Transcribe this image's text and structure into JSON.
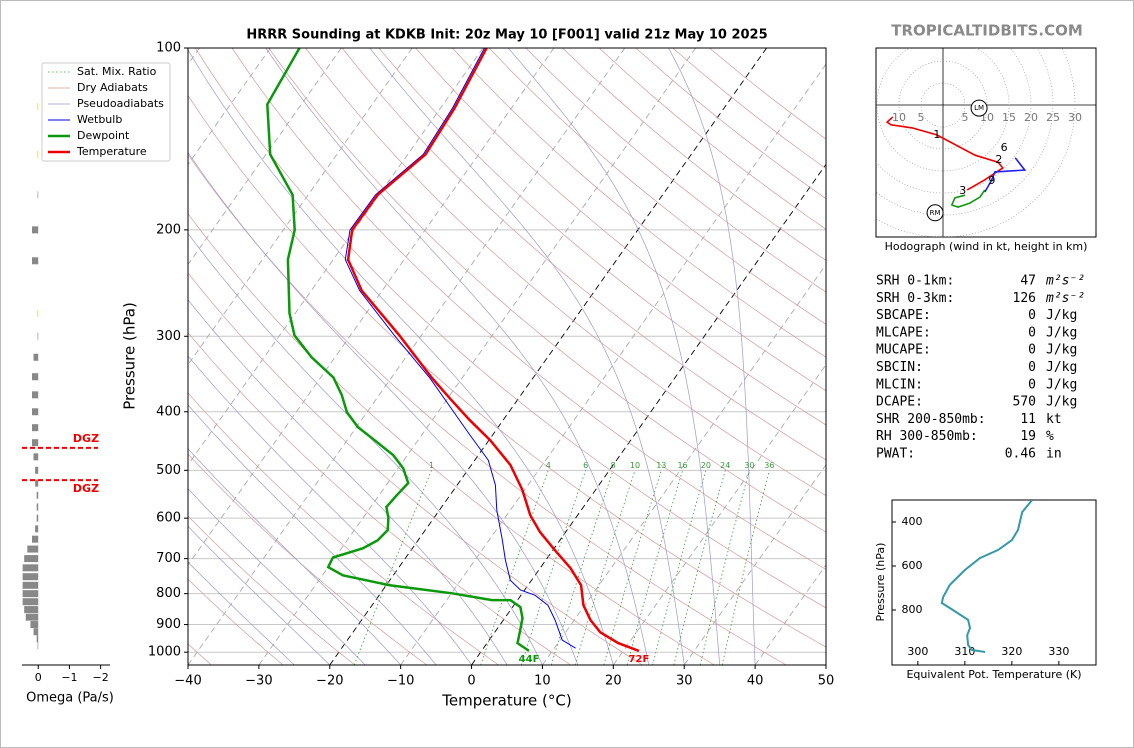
{
  "header": {
    "site": "TROPICALTIDBITS.COM"
  },
  "chart_data": [
    {
      "type": "skewt",
      "title": "HRRR Sounding at KDKB Init: 20z May 10 [F001] valid 21z May 10 2025",
      "xlabel": "Temperature (°C)",
      "ylabel": "Pressure (hPa)",
      "xlim": [
        -40,
        50
      ],
      "ylim": [
        1050,
        100
      ],
      "log_y": true,
      "grid": true,
      "xticks": [
        {
          "value": -40,
          "label": "−40"
        },
        {
          "value": -30,
          "label": "−30"
        },
        {
          "value": -20,
          "label": "−20"
        },
        {
          "value": -10,
          "label": "−10"
        },
        0,
        10,
        20,
        30,
        40,
        50
      ],
      "yticks": [
        100,
        200,
        300,
        400,
        500,
        600,
        700,
        800,
        900,
        1000
      ],
      "background_lines": [
        {
          "name": "Sat. Mix. Ratio",
          "color": "#3a9a3a",
          "style": "dotted"
        },
        {
          "name": "Dry Adiabats",
          "color": "#d69a9a",
          "style": "solid"
        },
        {
          "name": "Pseudoadiabats",
          "color": "#9b9bcf",
          "style": "solid"
        }
      ],
      "mixing_ratio_labels": [
        1,
        4,
        6,
        8,
        10,
        13,
        16,
        20,
        24,
        30,
        36
      ],
      "series": [
        {
          "name": "Wetbulb",
          "color": "#0000ee",
          "pressure": [
            985,
            955,
            885,
            836,
            805,
            789,
            760,
            704,
            653,
            582,
            529,
            481,
            437,
            352,
            299,
            252,
            224,
            200,
            175,
            150,
            126,
            100
          ],
          "values": [
            13,
            10.3,
            7.3,
            4.8,
            2,
            -0.6,
            -3,
            -5.7,
            -8.1,
            -11.9,
            -14.6,
            -18.1,
            -23.2,
            -34.5,
            -43.8,
            -53.2,
            -58.3,
            -60.6,
            -60.5,
            -57.8,
            -58.3,
            -59.8
          ]
        },
        {
          "name": "Dewpoint",
          "color": "#0a990a",
          "surface_label": "44F",
          "pressure": [
            995,
            966,
            920,
            878,
            842,
            820,
            820,
            799,
            775,
            746,
            723,
            697,
            673,
            653,
            628,
            600,
            575,
            550,
            525,
            496,
            472,
            446,
            424,
            401,
            375,
            351,
            325,
            299,
            275,
            224,
            200,
            175,
            150,
            124,
            100
          ],
          "values": [
            6.7,
            4.3,
            3.4,
            2.5,
            1.1,
            -1,
            -3.6,
            -9.9,
            -19.5,
            -27.1,
            -30,
            -30.3,
            -27,
            -25.7,
            -25.3,
            -26.4,
            -27.8,
            -27.5,
            -27.1,
            -29.3,
            -32,
            -36.1,
            -39.8,
            -42.8,
            -45.3,
            -48.2,
            -53.3,
            -57.9,
            -60.8,
            -66.4,
            -68.4,
            -72.2,
            -79.4,
            -84.8,
            -85.9
          ]
        },
        {
          "name": "Temperature",
          "color": "#ee0000",
          "surface_label": "72F",
          "pressure": [
            995,
            966,
            927,
            885,
            836,
            775,
            726,
            678,
            633,
            593,
            539,
            490,
            446,
            413,
            380,
            352,
            299,
            252,
            224,
            200,
            175,
            150,
            126,
            100
          ],
          "values": [
            22.2,
            18.5,
            14.9,
            12.3,
            9.8,
            7.5,
            4.3,
            0.3,
            -3.6,
            -6.7,
            -10.3,
            -14.5,
            -19.8,
            -24.7,
            -29.7,
            -34.2,
            -43.1,
            -52.9,
            -57.9,
            -60.3,
            -60.2,
            -57.5,
            -58,
            -59.5
          ]
        }
      ]
    },
    {
      "type": "hodograph",
      "caption": "Hodograph (wind in kt, height in km)",
      "ring_labels": [
        {
          "value": -10,
          "label": "10"
        },
        {
          "value": -5,
          "label": "5"
        },
        5,
        10,
        15,
        20,
        25,
        30
      ],
      "series": [
        {
          "color": "#ee0000",
          "u": [
            -11.4,
            -12.7,
            -11.8,
            -7,
            -1.4,
            7.3,
            12.5,
            13.6,
            9.5,
            5.5
          ],
          "v": [
            -2.7,
            -3.9,
            -4.5,
            -5.2,
            -6.8,
            -11.4,
            -13,
            -14.3,
            -17,
            -19.3
          ]
        },
        {
          "color": "#2222ee",
          "u": [
            9.5,
            11.1,
            11.8,
            18.6,
            16.4
          ],
          "v": [
            -19.8,
            -17,
            -15.2,
            -14.8,
            -12
          ]
        },
        {
          "color": "#119911",
          "u": [
            9.5,
            8.4,
            6.1,
            3.4,
            2,
            2.7,
            5
          ],
          "v": [
            -19.3,
            -20.9,
            -22.3,
            -23.2,
            -22.7,
            -21.1,
            -20.5
          ]
        }
      ],
      "height_labels": [
        {
          "km": 1,
          "u": -1.4,
          "v": -6.8
        },
        {
          "km": 2,
          "u": 12.7,
          "v": -12.5
        },
        {
          "km": 3,
          "u": 4.5,
          "v": -19.5
        },
        {
          "km": 6,
          "u": 13.9,
          "v": -9.8
        },
        {
          "km": 9,
          "u": 11.1,
          "v": -17.3
        }
      ],
      "storm_motion": [
        {
          "label": "LM",
          "u": 8.2,
          "v": -0.7
        },
        {
          "label": "RM",
          "u": -1.8,
          "v": -24.5
        }
      ]
    },
    {
      "type": "line",
      "xlabel": "Equivalent Pot. Temperature (K)",
      "ylabel": "Pressure (hPa)",
      "xlim": [
        294.5,
        337.9
      ],
      "ylim": [
        1050,
        300
      ],
      "xticks": [
        300,
        310,
        320,
        330
      ],
      "yticks": [
        400,
        600,
        800
      ],
      "color": "#3399aa",
      "x": [
        324.3,
        322.2,
        321.3,
        320.0,
        317.1,
        313.2,
        310.0,
        306.8,
        305.4,
        305.1,
        306.8,
        310.7,
        311.1,
        310.5,
        310.7,
        311.5,
        314.3
      ],
      "values": [
        300,
        355,
        436,
        482,
        527,
        564,
        618,
        686,
        741,
        768,
        791,
        845,
        882,
        914,
        959,
        982,
        991
      ]
    },
    {
      "type": "hbar",
      "xlabel": "Omega (Pa/s)",
      "xlim": [
        0.52,
        -2.3
      ],
      "ylim": [
        1050,
        100
      ],
      "log_y": true,
      "xticks": [
        0,
        {
          "value": -1,
          "label": "−1"
        },
        {
          "value": -2,
          "label": "−2"
        }
      ],
      "pressure": [
        125,
        150,
        175,
        200,
        225,
        275,
        300,
        325,
        350,
        375,
        400,
        425,
        450,
        475,
        500,
        525,
        550,
        575,
        600,
        625,
        650,
        675,
        700,
        725,
        750,
        775,
        800,
        825,
        850,
        875,
        900,
        925,
        950,
        975
      ],
      "values": [
        0.03,
        0.03,
        0.02,
        0.2,
        0.2,
        0.03,
        0.02,
        0.15,
        0.2,
        0.2,
        0.2,
        0.2,
        0.2,
        0.15,
        0.1,
        0.1,
        0.05,
        0.05,
        0.05,
        0.1,
        0.2,
        0.35,
        0.45,
        0.5,
        0.5,
        0.5,
        0.5,
        0.5,
        0.45,
        0.4,
        0.25,
        0.15,
        0.05,
        0.02
      ],
      "colors": [
        "#ffe600",
        "#ffe600",
        "#888888",
        "#888888",
        "#888888",
        "#ffe600",
        "#888888",
        "#888888",
        "#888888",
        "#888888",
        "#888888",
        "#888888",
        "#888888",
        "#888888",
        "#888888",
        "#888888",
        "#888888",
        "#888888",
        "#888888",
        "#888888",
        "#888888",
        "#888888",
        "#888888",
        "#888888",
        "#888888",
        "#888888",
        "#888888",
        "#888888",
        "#888888",
        "#888888",
        "#888888",
        "#888888",
        "#888888",
        "#888888"
      ],
      "dgz_levels": [
        459,
        519
      ],
      "dgz_labels": [
        "DGZ",
        "DGZ"
      ],
      "dgz_color": "#ee0000"
    }
  ],
  "stats": [
    {
      "label": "SRH 0-1km:",
      "value": 47,
      "unit": "m²s⁻²",
      "color": "#000000"
    },
    {
      "label": "SRH 0-3km:",
      "value": 126,
      "unit": "m²s⁻²",
      "color": "#000000"
    },
    {
      "label": "SBCAPE:",
      "value": 0,
      "unit": "J/kg",
      "color": "#000000"
    },
    {
      "label": "MLCAPE:",
      "value": 0,
      "unit": "J/kg",
      "color": "#000000"
    },
    {
      "label": "MUCAPE:",
      "value": 0,
      "unit": "J/kg",
      "color": "#000000"
    },
    {
      "label": "SBCIN:",
      "value": 0,
      "unit": "J/kg",
      "color": "#000000"
    },
    {
      "label": "MLCIN:",
      "value": 0,
      "unit": "J/kg",
      "color": "#000000"
    },
    {
      "label": "DCAPE:",
      "value": 570,
      "unit": "J/kg",
      "color": "#3030d0"
    },
    {
      "label": "SHR 200-850mb:",
      "value": 11,
      "unit": "kt",
      "color": "#d2691e"
    },
    {
      "label": "RH 300-850mb:",
      "value": 19,
      "unit": "%",
      "color": "#8b4a00"
    },
    {
      "label": "PWAT:",
      "value": 0.46,
      "unit": "in",
      "color": "#000000"
    }
  ]
}
